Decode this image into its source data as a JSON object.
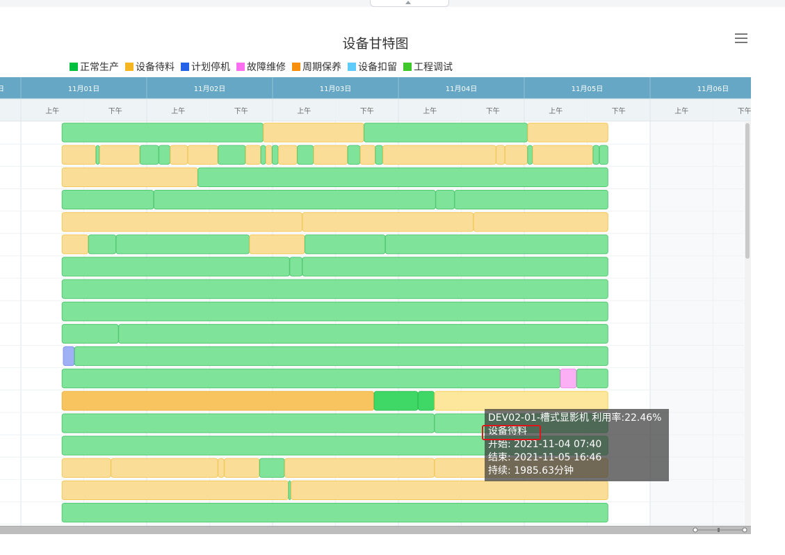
{
  "title": "设备甘特图",
  "legend": [
    {
      "label": "正常生产",
      "color": "#00c040"
    },
    {
      "label": "设备待料",
      "color": "#f5b622"
    },
    {
      "label": "计划停机",
      "color": "#2462e8"
    },
    {
      "label": "故障维修",
      "color": "#fb6ef0"
    },
    {
      "label": "周期保养",
      "color": "#f78f0c"
    },
    {
      "label": "设备扣留",
      "color": "#5ecbfb"
    },
    {
      "label": "工程调试",
      "color": "#3ec82a"
    }
  ],
  "header": {
    "days": [
      "日",
      "11月01日",
      "11月02日",
      "11月03日",
      "11月04日",
      "11月05日",
      "11月06日"
    ],
    "am": "上午",
    "pm": "下午"
  },
  "tooltip": {
    "line1": "DEV02-01-槽式显影机 利用率:22.46%",
    "line2": "设备待料",
    "line3": "开始: 2021-11-04 07:40",
    "line4": "结束: 2021-11-05 16:46",
    "line5": "持续: 1985.63分钟"
  },
  "chart_data": {
    "type": "gantt",
    "title": "设备甘特图",
    "x_axis": {
      "unit": "day",
      "start": 0.0,
      "end": 6.0,
      "origin_date": "2021-10-31"
    },
    "series": [
      "正常生产",
      "设备待料",
      "计划停机",
      "故障维修"
    ],
    "rows": [
      [
        [
          1.33,
          2.93,
          "正常生产"
        ],
        [
          2.93,
          3.73,
          "设备待料"
        ],
        [
          3.73,
          5.03,
          "正常生产"
        ],
        [
          5.03,
          5.67,
          "设备待料"
        ]
      ],
      [
        [
          1.33,
          1.6,
          "设备待料"
        ],
        [
          1.6,
          1.63,
          "正常生产"
        ],
        [
          1.63,
          1.95,
          "设备待料"
        ],
        [
          1.95,
          2.1,
          "正常生产"
        ],
        [
          2.1,
          2.19,
          "正常生产"
        ],
        [
          2.19,
          2.33,
          "设备待料"
        ],
        [
          2.33,
          2.57,
          "设备待料"
        ],
        [
          2.57,
          2.79,
          "正常生产"
        ],
        [
          2.79,
          2.91,
          "设备待料"
        ],
        [
          2.91,
          2.95,
          "正常生产"
        ],
        [
          2.95,
          3.0,
          "设备待料"
        ],
        [
          3.0,
          3.05,
          "正常生产"
        ],
        [
          3.05,
          3.2,
          "设备待料"
        ],
        [
          3.2,
          3.33,
          "正常生产"
        ],
        [
          3.33,
          3.6,
          "设备待料"
        ],
        [
          3.6,
          3.7,
          "正常生产"
        ],
        [
          3.7,
          3.82,
          "设备待料"
        ],
        [
          3.82,
          3.88,
          "正常生产"
        ],
        [
          3.88,
          4.78,
          "设备待料"
        ],
        [
          4.78,
          4.85,
          "设备待料"
        ],
        [
          4.85,
          5.03,
          "设备待料"
        ],
        [
          5.03,
          5.07,
          "正常生产"
        ],
        [
          5.07,
          5.55,
          "设备待料"
        ],
        [
          5.55,
          5.6,
          "正常生产"
        ],
        [
          5.6,
          5.67,
          "正常生产"
        ]
      ],
      [
        [
          1.33,
          2.41,
          "设备待料"
        ],
        [
          2.41,
          5.67,
          "正常生产"
        ]
      ],
      [
        [
          1.33,
          2.06,
          "正常生产"
        ],
        [
          2.06,
          4.3,
          "正常生产"
        ],
        [
          4.3,
          4.45,
          "正常生产"
        ],
        [
          4.45,
          5.67,
          "正常生产"
        ]
      ],
      [
        [
          1.33,
          3.24,
          "设备待料"
        ],
        [
          3.24,
          4.6,
          "设备待料"
        ],
        [
          4.6,
          5.67,
          "设备待料"
        ]
      ],
      [
        [
          1.33,
          1.54,
          "设备待料"
        ],
        [
          1.54,
          1.76,
          "正常生产"
        ],
        [
          1.76,
          2.82,
          "正常生产"
        ],
        [
          2.82,
          3.26,
          "设备待料"
        ],
        [
          3.26,
          3.9,
          "正常生产"
        ],
        [
          3.9,
          5.67,
          "正常生产"
        ]
      ],
      [
        [
          1.33,
          3.14,
          "正常生产"
        ],
        [
          3.14,
          3.24,
          "正常生产"
        ],
        [
          3.24,
          5.67,
          "正常生产"
        ]
      ],
      [
        [
          1.33,
          5.67,
          "正常生产"
        ]
      ],
      [
        [
          1.33,
          5.67,
          "正常生产"
        ]
      ],
      [
        [
          1.33,
          1.78,
          "正常生产"
        ],
        [
          1.78,
          5.67,
          "正常生产"
        ]
      ],
      [
        [
          1.34,
          1.43,
          "计划停机"
        ],
        [
          1.43,
          5.67,
          "正常生产"
        ]
      ],
      [
        [
          1.33,
          5.29,
          "正常生产"
        ],
        [
          5.29,
          5.42,
          "故障维修"
        ],
        [
          5.42,
          5.67,
          "正常生产"
        ]
      ],
      [
        [
          1.33,
          3.81,
          "设备待料"
        ],
        [
          3.81,
          4.16,
          "正常生产"
        ],
        [
          4.16,
          4.29,
          "正常生产"
        ],
        [
          4.29,
          5.67,
          "设备待料"
        ]
      ],
      [
        [
          1.33,
          4.29,
          "正常生产"
        ],
        [
          4.29,
          5.67,
          "正常生产"
        ]
      ],
      [
        [
          1.33,
          5.67,
          "正常生产"
        ]
      ],
      [
        [
          1.33,
          1.72,
          "设备待料"
        ],
        [
          1.72,
          2.57,
          "设备待料"
        ],
        [
          2.57,
          2.62,
          "设备待料"
        ],
        [
          2.62,
          2.9,
          "设备待料"
        ],
        [
          2.9,
          3.1,
          "正常生产"
        ],
        [
          3.1,
          4.29,
          "设备待料"
        ],
        [
          4.29,
          5.67,
          "设备待料"
        ]
      ],
      [
        [
          1.33,
          3.13,
          "设备待料"
        ],
        [
          3.13,
          3.15,
          "正常生产"
        ],
        [
          3.15,
          5.67,
          "设备待料"
        ]
      ],
      [
        [
          1.33,
          5.67,
          "正常生产"
        ]
      ]
    ]
  }
}
